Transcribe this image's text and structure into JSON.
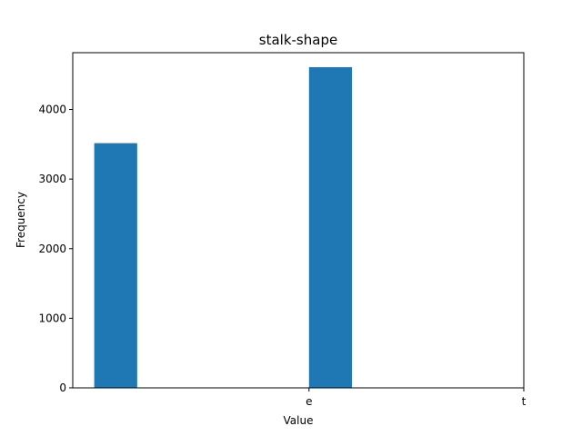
{
  "chart_data": {
    "type": "bar",
    "title": "stalk-shape",
    "xlabel": "Value",
    "ylabel": "Frequency",
    "ylim": [
      0,
      4816
    ],
    "yticks": [
      0,
      1000,
      2000,
      3000,
      4000
    ],
    "xticks": [
      "e",
      "t"
    ],
    "bars": [
      {
        "x": 0.05,
        "value": 3516
      },
      {
        "x": 0.55,
        "value": 4608
      }
    ],
    "bar_color": "#1f77b4",
    "grid": false,
    "legend": "none"
  }
}
